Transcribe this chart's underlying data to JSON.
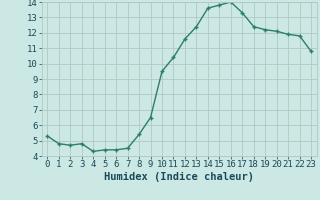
{
  "x": [
    0,
    1,
    2,
    3,
    4,
    5,
    6,
    7,
    8,
    9,
    10,
    11,
    12,
    13,
    14,
    15,
    16,
    17,
    18,
    19,
    20,
    21,
    22,
    23
  ],
  "y": [
    5.3,
    4.8,
    4.7,
    4.8,
    4.3,
    4.4,
    4.4,
    4.5,
    5.4,
    6.5,
    9.5,
    10.4,
    11.6,
    12.4,
    13.6,
    13.8,
    14.0,
    13.3,
    12.4,
    12.2,
    12.1,
    11.9,
    11.8,
    10.8
  ],
  "xlabel": "Humidex (Indice chaleur)",
  "ylim": [
    4,
    14
  ],
  "xlim": [
    -0.5,
    23.5
  ],
  "yticks": [
    4,
    5,
    6,
    7,
    8,
    9,
    10,
    11,
    12,
    13,
    14
  ],
  "xticks": [
    0,
    1,
    2,
    3,
    4,
    5,
    6,
    7,
    8,
    9,
    10,
    11,
    12,
    13,
    14,
    15,
    16,
    17,
    18,
    19,
    20,
    21,
    22,
    23
  ],
  "line_color": "#2d7d6e",
  "marker_color": "#2d7d6e",
  "bg_color": "#cce8e4",
  "grid_color": "#b0c8c4",
  "tick_label_color": "#1a4a5a",
  "xlabel_color": "#1a4a5a",
  "tick_fontsize": 6.5,
  "xlabel_fontsize": 7.5
}
